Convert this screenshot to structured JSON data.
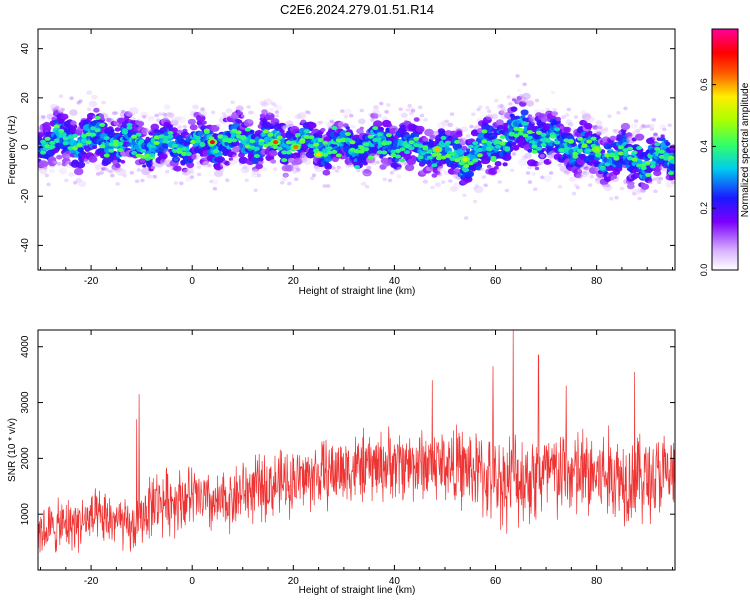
{
  "title": "C2E6.2024.279.01.51.R14",
  "colors": {
    "signal": "#ee3333",
    "frame": "#000000",
    "background": "#ffffff"
  },
  "chart_data": [
    {
      "type": "heatmap",
      "xlabel": "Height of straight line (km)",
      "ylabel": "Frequency (Hz)",
      "xlim": [
        -30.5,
        95.5
      ],
      "ylim": [
        -50,
        48
      ],
      "xticks": [
        -20,
        0,
        20,
        40,
        60,
        80
      ],
      "yticks": [
        -40,
        -20,
        0,
        20,
        40
      ],
      "colorbar": {
        "label": "Normalized spectral amplitude",
        "range": [
          0.0,
          0.78
        ],
        "ticks": [
          0.0,
          0.2,
          0.4,
          0.6
        ],
        "tick_labels": [
          "0.0",
          "0.2",
          "0.4",
          "0.6"
        ]
      },
      "ridge": {
        "description_x": [
          -30,
          -20,
          -10,
          0,
          10,
          20,
          30,
          40,
          50,
          55,
          60,
          65,
          70,
          80,
          90,
          95
        ],
        "center_y": [
          2,
          4,
          1,
          1,
          3,
          2,
          0,
          2,
          -2,
          -5,
          2,
          7,
          3,
          -2,
          -6,
          -3
        ],
        "halfwidth": [
          9,
          11,
          9,
          9,
          10,
          9,
          8,
          9,
          9,
          12,
          11,
          12,
          10,
          10,
          10,
          8
        ]
      },
      "hotspots": [
        {
          "x": 4,
          "y": 2,
          "value": 0.75
        },
        {
          "x": 16.5,
          "y": 2,
          "value": 0.7
        },
        {
          "x": 20.5,
          "y": 0,
          "value": 0.66
        },
        {
          "x": 25,
          "y": -3,
          "value": 0.6
        },
        {
          "x": 48.5,
          "y": -1,
          "value": 0.62
        },
        {
          "x": 54,
          "y": -5,
          "value": 0.55
        },
        {
          "x": 80,
          "y": -1,
          "value": 0.5
        }
      ]
    },
    {
      "type": "line",
      "xlabel": "Height of straight line (km)",
      "ylabel": "SNR (10 * v/v)",
      "xlim": [
        -30.5,
        95.5
      ],
      "ylim": [
        0,
        4300
      ],
      "xticks": [
        -20,
        0,
        20,
        40,
        60,
        80
      ],
      "yticks": [
        1000,
        2000,
        3000,
        4000
      ],
      "series": [
        {
          "trend_x": [
            -30,
            -20,
            -15,
            -12,
            -8,
            0,
            5,
            10,
            20,
            30,
            40,
            50,
            55,
            60,
            70,
            80,
            90,
            95
          ],
          "trend_y": [
            700,
            900,
            900,
            700,
            1200,
            1300,
            1150,
            1400,
            1600,
            1800,
            1900,
            1900,
            1800,
            1600,
            1700,
            1700,
            1650,
            1700
          ],
          "spread": [
            500,
            550,
            550,
            500,
            650,
            650,
            600,
            650,
            650,
            700,
            700,
            750,
            800,
            900,
            950,
            950,
            900,
            850
          ],
          "spikes": [
            {
              "x": -10.5,
              "y": 3150
            },
            {
              "x": -11,
              "y": 2700
            },
            {
              "x": 63.5,
              "y": 4300
            },
            {
              "x": 68.5,
              "y": 3850
            },
            {
              "x": 59.5,
              "y": 3650
            },
            {
              "x": 87.5,
              "y": 3550
            },
            {
              "x": 47.5,
              "y": 3400
            },
            {
              "x": 74,
              "y": 3300
            }
          ]
        }
      ]
    }
  ]
}
